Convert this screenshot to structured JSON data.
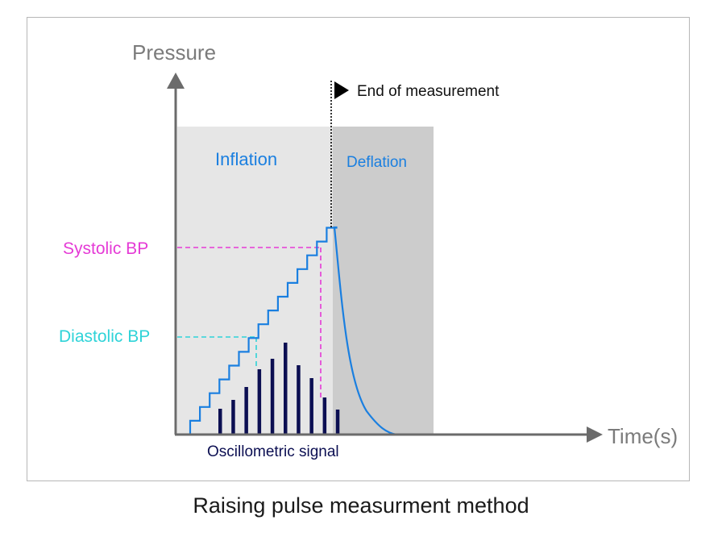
{
  "diagram": {
    "y_axis_label": "Pressure",
    "x_axis_label": "Time(s)",
    "end_marker_label": "End of measurement",
    "inflation_label": "Inflation",
    "deflation_label": "Deflation",
    "systolic_label": "Systolic BP",
    "diastolic_label": "Diastolic BP",
    "signal_label": "Oscillometric signal",
    "caption": "Raising pulse measurment method"
  },
  "colors": {
    "axis": "#6b6b6b",
    "inflation_zone": "#e6e6e6",
    "deflation_zone": "#cccccc",
    "pressure_curve": "#1a7fe0",
    "systolic": "#e53ad6",
    "diastolic": "#2fd3d8",
    "signal_bars": "#0c0f52",
    "end_marker": "#000000"
  }
}
